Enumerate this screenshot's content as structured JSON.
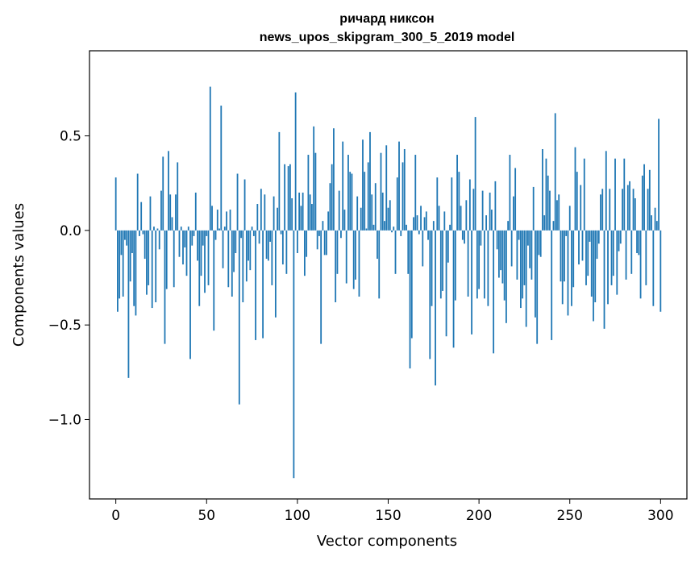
{
  "chart_data": {
    "type": "bar",
    "title": "ричард никсон",
    "subtitle": "news_upos_skipgram_300_5_2019 model",
    "xlabel": "Vector components",
    "ylabel": "Components values",
    "xlim": [
      -14.5,
      314.5
    ],
    "ylim": [
      -1.42,
      0.95
    ],
    "xticks": [
      0,
      50,
      100,
      150,
      200,
      250,
      300
    ],
    "xtick_labels": [
      "0",
      "50",
      "100",
      "150",
      "200",
      "250",
      "300"
    ],
    "yticks": [
      -1.0,
      -0.5,
      0.0,
      0.5
    ],
    "ytick_labels": [
      "−1.0",
      "−0.5",
      "0.0",
      "0.5"
    ],
    "grid": false,
    "series": [
      {
        "color": "#1f77b4",
        "values": [
          0.28,
          -0.43,
          -0.36,
          -0.13,
          -0.35,
          -0.05,
          -0.08,
          -0.78,
          -0.27,
          -0.12,
          -0.4,
          -0.45,
          0.3,
          -0.03,
          0.15,
          -0.02,
          -0.15,
          -0.34,
          -0.29,
          0.18,
          -0.41,
          0.02,
          -0.38,
          0.01,
          -0.1,
          0.21,
          0.39,
          -0.6,
          -0.31,
          0.42,
          0.19,
          0.07,
          -0.3,
          0.19,
          0.36,
          -0.14,
          0.02,
          -0.18,
          -0.09,
          -0.24,
          0.02,
          -0.68,
          -0.08,
          -0.03,
          0.2,
          -0.16,
          -0.4,
          -0.24,
          -0.08,
          -0.33,
          -0.03,
          -0.29,
          0.76,
          0.13,
          -0.53,
          -0.05,
          0.11,
          0.01,
          0.66,
          -0.2,
          0.02,
          0.1,
          -0.3,
          0.11,
          -0.35,
          -0.22,
          -0.12,
          0.3,
          -0.92,
          -0.04,
          -0.38,
          0.27,
          -0.27,
          -0.16,
          -0.21,
          0.02,
          -0.03,
          -0.58,
          0.14,
          -0.07,
          0.22,
          -0.57,
          0.19,
          -0.15,
          -0.16,
          -0.06,
          -0.29,
          0.18,
          -0.46,
          0.12,
          0.52,
          -0.02,
          -0.18,
          0.35,
          -0.23,
          0.34,
          0.35,
          0.17,
          -1.31,
          0.73,
          -0.12,
          0.2,
          0.13,
          0.2,
          -0.24,
          -0.14,
          0.4,
          0.19,
          0.14,
          0.55,
          0.41,
          -0.1,
          -0.03,
          -0.6,
          0.05,
          -0.13,
          -0.13,
          0.1,
          0.25,
          0.35,
          0.54,
          -0.38,
          -0.23,
          0.21,
          -0.04,
          0.47,
          0.11,
          -0.28,
          0.4,
          0.31,
          0.3,
          -0.31,
          -0.26,
          0.18,
          -0.35,
          0.12,
          0.48,
          0.31,
          0.01,
          0.36,
          0.52,
          0.19,
          0.03,
          0.25,
          -0.15,
          -0.36,
          0.41,
          0.2,
          0.05,
          0.45,
          0.12,
          0.16,
          -0.01,
          0.02,
          -0.23,
          0.28,
          0.47,
          -0.03,
          0.36,
          0.43,
          0.03,
          -0.23,
          -0.73,
          -0.57,
          0.07,
          0.4,
          0.08,
          -0.02,
          0.13,
          -0.19,
          0.07,
          0.1,
          -0.05,
          -0.68,
          -0.4,
          0.05,
          -0.82,
          0.28,
          0.13,
          -0.36,
          -0.32,
          0.1,
          -0.56,
          -0.17,
          0.03,
          0.28,
          -0.62,
          -0.37,
          0.4,
          0.31,
          0.13,
          -0.05,
          -0.07,
          0.16,
          -0.35,
          0.27,
          -0.55,
          0.22,
          0.6,
          -0.36,
          -0.31,
          -0.08,
          0.21,
          -0.36,
          0.08,
          -0.4,
          0.2,
          0.11,
          -0.65,
          0.26,
          -0.1,
          -0.25,
          -0.21,
          -0.28,
          -0.37,
          -0.49,
          0.05,
          0.4,
          -0.19,
          0.18,
          0.33,
          -0.26,
          -0.05,
          -0.41,
          -0.36,
          -0.29,
          -0.51,
          -0.08,
          -0.2,
          -0.26,
          0.23,
          -0.46,
          -0.6,
          -0.13,
          -0.14,
          0.43,
          0.08,
          0.38,
          0.29,
          0.21,
          -0.58,
          0.05,
          0.62,
          0.16,
          0.19,
          -0.27,
          -0.39,
          -0.27,
          -0.03,
          -0.45,
          0.13,
          -0.4,
          -0.3,
          0.44,
          0.31,
          -0.18,
          0.24,
          -0.16,
          0.38,
          -0.29,
          -0.24,
          -0.06,
          -0.35,
          -0.48,
          -0.38,
          -0.15,
          -0.07,
          0.19,
          0.22,
          -0.52,
          0.42,
          -0.39,
          0.22,
          -0.29,
          -0.24,
          0.38,
          -0.34,
          -0.11,
          -0.07,
          0.22,
          0.38,
          -0.26,
          0.24,
          0.26,
          -0.23,
          0.22,
          0.17,
          -0.12,
          -0.13,
          -0.36,
          0.29,
          0.35,
          -0.29,
          0.22,
          0.32,
          0.08,
          -0.4,
          0.12,
          0.05,
          0.59,
          -0.43
        ]
      }
    ]
  }
}
